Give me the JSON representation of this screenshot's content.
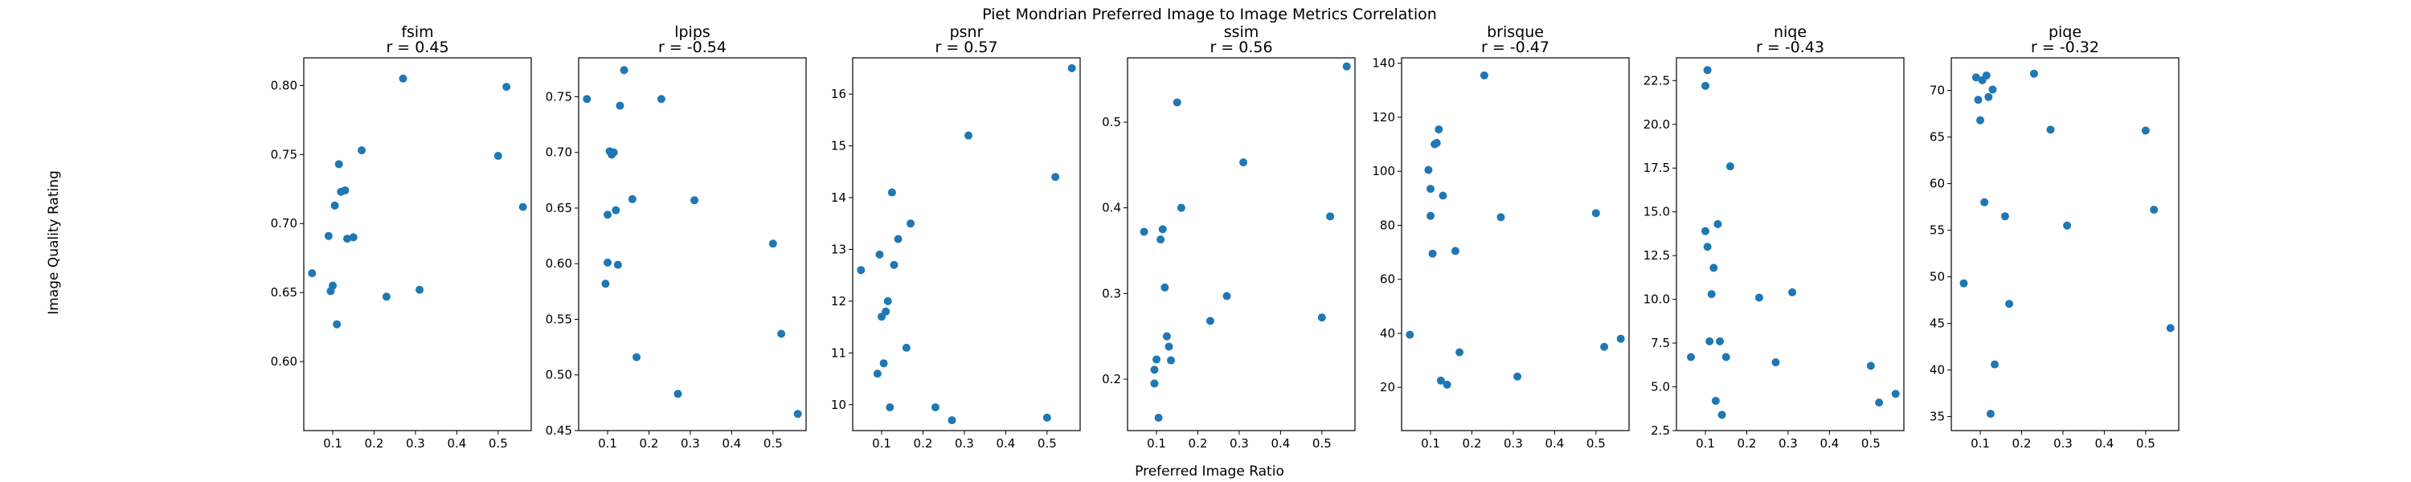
{
  "figure": {
    "suptitle": "Piet Mondrian Preferred Image to Image Metrics Correlation",
    "xlabel": "Preferred Image Ratio",
    "ylabel": "Image Quality Rating",
    "point_color": "#1f77b4"
  },
  "chart_data": [
    {
      "type": "scatter",
      "title": "fsim",
      "subtitle": "r = 0.45",
      "xlim": [
        0.03,
        0.58
      ],
      "ylim": [
        0.55,
        0.82
      ],
      "xticks": [
        0.1,
        0.2,
        0.3,
        0.4,
        0.5
      ],
      "xtick_labels": [
        "0.1",
        "0.2",
        "0.3",
        "0.4",
        "0.5"
      ],
      "yticks": [
        0.6,
        0.65,
        0.7,
        0.75,
        0.8
      ],
      "ytick_labels": [
        "0.60",
        "0.65",
        "0.70",
        "0.75",
        "0.80"
      ],
      "x": [
        0.05,
        0.09,
        0.095,
        0.1,
        0.105,
        0.11,
        0.115,
        0.12,
        0.13,
        0.135,
        0.15,
        0.17,
        0.23,
        0.27,
        0.31,
        0.5,
        0.52,
        0.56
      ],
      "y": [
        0.664,
        0.691,
        0.651,
        0.655,
        0.713,
        0.627,
        0.743,
        0.723,
        0.724,
        0.689,
        0.69,
        0.753,
        0.647,
        0.805,
        0.652,
        0.749,
        0.799,
        0.712
      ]
    },
    {
      "type": "scatter",
      "title": "lpips",
      "subtitle": "r = -0.54",
      "xlim": [
        0.03,
        0.58
      ],
      "ylim": [
        0.45,
        0.785
      ],
      "xticks": [
        0.1,
        0.2,
        0.3,
        0.4,
        0.5
      ],
      "xtick_labels": [
        "0.1",
        "0.2",
        "0.3",
        "0.4",
        "0.5"
      ],
      "yticks": [
        0.45,
        0.5,
        0.55,
        0.6,
        0.65,
        0.7,
        0.75
      ],
      "ytick_labels": [
        "0.45",
        "0.50",
        "0.55",
        "0.60",
        "0.65",
        "0.70",
        "0.75"
      ],
      "x": [
        0.05,
        0.095,
        0.1,
        0.1,
        0.105,
        0.11,
        0.115,
        0.12,
        0.125,
        0.13,
        0.14,
        0.16,
        0.17,
        0.23,
        0.27,
        0.31,
        0.5,
        0.52,
        0.56
      ],
      "y": [
        0.748,
        0.582,
        0.644,
        0.601,
        0.701,
        0.698,
        0.7,
        0.648,
        0.599,
        0.742,
        0.774,
        0.658,
        0.516,
        0.748,
        0.483,
        0.657,
        0.618,
        0.537,
        0.465
      ]
    },
    {
      "type": "scatter",
      "title": "psnr",
      "subtitle": "r = 0.57",
      "xlim": [
        0.03,
        0.58
      ],
      "ylim": [
        9.5,
        16.7
      ],
      "xticks": [
        0.1,
        0.2,
        0.3,
        0.4,
        0.5
      ],
      "xtick_labels": [
        "0.1",
        "0.2",
        "0.3",
        "0.4",
        "0.5"
      ],
      "yticks": [
        10,
        11,
        12,
        13,
        14,
        15,
        16
      ],
      "ytick_labels": [
        "10",
        "11",
        "12",
        "13",
        "14",
        "15",
        "16"
      ],
      "x": [
        0.05,
        0.09,
        0.095,
        0.1,
        0.105,
        0.11,
        0.115,
        0.12,
        0.125,
        0.13,
        0.14,
        0.16,
        0.17,
        0.23,
        0.27,
        0.31,
        0.5,
        0.52,
        0.56
      ],
      "y": [
        12.6,
        10.6,
        12.9,
        11.7,
        10.8,
        11.8,
        12.0,
        9.95,
        14.1,
        12.7,
        13.2,
        11.1,
        13.5,
        9.95,
        9.7,
        15.2,
        9.75,
        14.4,
        16.5
      ]
    },
    {
      "type": "scatter",
      "title": "ssim",
      "subtitle": "r = 0.56",
      "xlim": [
        0.03,
        0.58
      ],
      "ylim": [
        0.14,
        0.575
      ],
      "xticks": [
        0.1,
        0.2,
        0.3,
        0.4,
        0.5
      ],
      "xtick_labels": [
        "0.1",
        "0.2",
        "0.3",
        "0.4",
        "0.5"
      ],
      "yticks": [
        0.2,
        0.3,
        0.4,
        0.5
      ],
      "ytick_labels": [
        "0.2",
        "0.3",
        "0.4",
        "0.5"
      ],
      "x": [
        0.07,
        0.095,
        0.095,
        0.1,
        0.105,
        0.11,
        0.115,
        0.12,
        0.125,
        0.13,
        0.135,
        0.15,
        0.16,
        0.23,
        0.27,
        0.31,
        0.5,
        0.52,
        0.56
      ],
      "y": [
        0.372,
        0.195,
        0.211,
        0.223,
        0.155,
        0.363,
        0.375,
        0.307,
        0.25,
        0.238,
        0.222,
        0.523,
        0.4,
        0.268,
        0.297,
        0.453,
        0.272,
        0.39,
        0.565
      ]
    },
    {
      "type": "scatter",
      "title": "brisque",
      "subtitle": "r = -0.47",
      "xlim": [
        0.03,
        0.58
      ],
      "ylim": [
        4,
        142
      ],
      "xticks": [
        0.1,
        0.2,
        0.3,
        0.4,
        0.5
      ],
      "xtick_labels": [
        "0.1",
        "0.2",
        "0.3",
        "0.4",
        "0.5"
      ],
      "yticks": [
        20,
        40,
        60,
        80,
        100,
        120,
        140
      ],
      "ytick_labels": [
        "20",
        "40",
        "60",
        "80",
        "100",
        "120",
        "140"
      ],
      "x": [
        0.05,
        0.095,
        0.1,
        0.1,
        0.105,
        0.11,
        0.115,
        0.12,
        0.125,
        0.13,
        0.14,
        0.16,
        0.17,
        0.23,
        0.27,
        0.31,
        0.5,
        0.52,
        0.56
      ],
      "y": [
        39.5,
        100.5,
        83.5,
        93.5,
        69.5,
        110,
        110.5,
        115.5,
        22.5,
        91,
        21,
        70.5,
        33,
        135.5,
        83,
        24,
        84.5,
        35,
        38
      ]
    },
    {
      "type": "scatter",
      "title": "niqe",
      "subtitle": "r = -0.43",
      "xlim": [
        0.03,
        0.58
      ],
      "ylim": [
        2.5,
        23.8
      ],
      "xticks": [
        0.1,
        0.2,
        0.3,
        0.4,
        0.5
      ],
      "xtick_labels": [
        "0.1",
        "0.2",
        "0.3",
        "0.4",
        "0.5"
      ],
      "yticks": [
        2.5,
        5.0,
        7.5,
        10.0,
        12.5,
        15.0,
        17.5,
        20.0,
        22.5
      ],
      "ytick_labels": [
        "2.5",
        "5.0",
        "7.5",
        "10.0",
        "12.5",
        "15.0",
        "17.5",
        "20.0",
        "22.5"
      ],
      "x": [
        0.065,
        0.1,
        0.1,
        0.105,
        0.105,
        0.11,
        0.115,
        0.12,
        0.125,
        0.13,
        0.135,
        0.14,
        0.15,
        0.16,
        0.23,
        0.27,
        0.31,
        0.5,
        0.52,
        0.56
      ],
      "y": [
        6.7,
        22.2,
        13.9,
        13.0,
        23.1,
        7.6,
        10.3,
        11.8,
        4.2,
        14.3,
        7.6,
        3.4,
        6.7,
        17.6,
        10.1,
        6.4,
        10.4,
        6.2,
        4.1,
        4.6
      ]
    },
    {
      "type": "scatter",
      "title": "piqe",
      "subtitle": "r = -0.32",
      "xlim": [
        0.03,
        0.58
      ],
      "ylim": [
        33.5,
        73.5
      ],
      "xticks": [
        0.1,
        0.2,
        0.3,
        0.4,
        0.5
      ],
      "xtick_labels": [
        "0.1",
        "0.2",
        "0.3",
        "0.4",
        "0.5"
      ],
      "yticks": [
        35,
        40,
        45,
        50,
        55,
        60,
        65,
        70
      ],
      "ytick_labels": [
        "35",
        "40",
        "45",
        "50",
        "55",
        "60",
        "65",
        "70"
      ],
      "x": [
        0.06,
        0.09,
        0.095,
        0.1,
        0.105,
        0.11,
        0.115,
        0.12,
        0.125,
        0.13,
        0.135,
        0.16,
        0.17,
        0.23,
        0.27,
        0.31,
        0.5,
        0.52,
        0.56
      ],
      "y": [
        49.3,
        71.4,
        69.0,
        66.8,
        71.1,
        58.0,
        71.6,
        69.3,
        35.3,
        70.1,
        40.6,
        56.5,
        47.1,
        71.8,
        65.8,
        55.5,
        65.7,
        57.2,
        44.5
      ]
    }
  ]
}
